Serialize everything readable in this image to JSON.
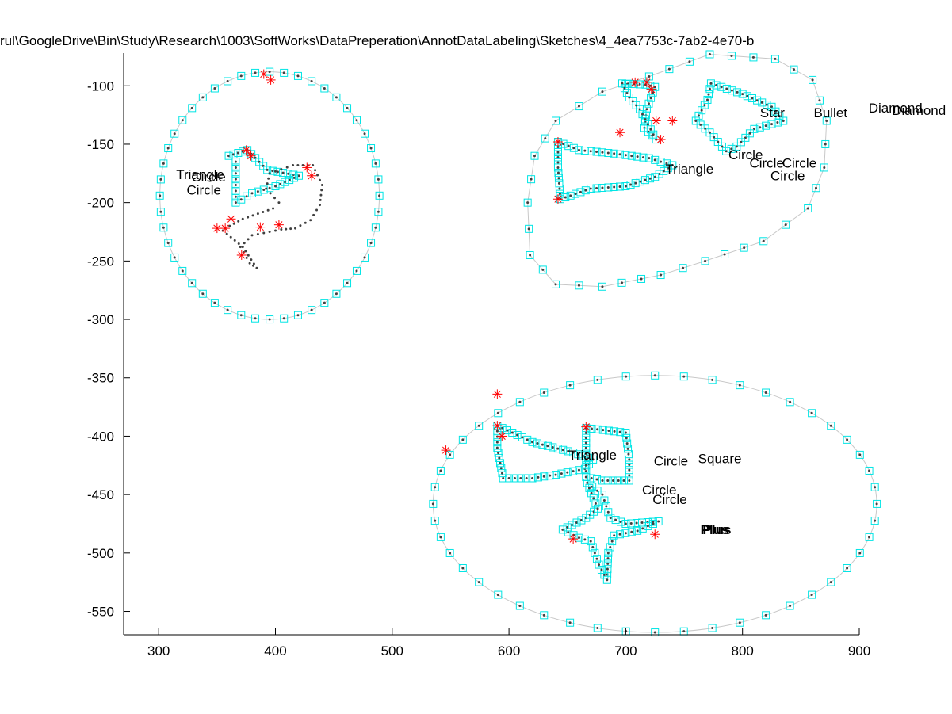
{
  "chart_data": {
    "type": "scatter",
    "title": "rul\\GoogleDrive\\Bin\\Study\\Research\\1003\\SoftWorks\\DataPreperation\\AnnotDataLabeling\\Sketches\\4_4ea7753c-7ab2-4e70-b",
    "xlabel": "",
    "ylabel": "",
    "xlim": [
      270,
      900
    ],
    "ylim": [
      -570,
      -72
    ],
    "xticks": [
      300,
      400,
      500,
      600,
      700,
      800,
      900
    ],
    "yticks": [
      -100,
      -150,
      -200,
      -250,
      -300,
      -350,
      -400,
      -450,
      -500,
      -550
    ],
    "xtick_labels": [
      "300",
      "400",
      "500",
      "600",
      "700",
      "800",
      "900"
    ],
    "ytick_labels": [
      "-100",
      "-150",
      "-200",
      "-250",
      "-300",
      "-350",
      "-400",
      "-450",
      "-500",
      "-550"
    ],
    "grid": false,
    "colors": {
      "marker_box": "#00e5e5",
      "point": "#404040",
      "star": "#ff0000",
      "hull": "#c8c8c8"
    },
    "boundaries": [
      {
        "name": "group-left",
        "shape": "ellipse",
        "cx": 395,
        "cy": -194,
        "rx": 94,
        "ry": 106
      },
      {
        "name": "group-bottom",
        "shape": "ellipse",
        "cx": 725,
        "cy": -458,
        "rx": 190,
        "ry": 110
      },
      {
        "name": "group-top-right",
        "shape": "polyline",
        "points": [
          [
            772,
            -73
          ],
          [
            828,
            -77
          ],
          [
            860,
            -95
          ],
          [
            872,
            -130
          ],
          [
            870,
            -170
          ],
          [
            856,
            -205
          ],
          [
            818,
            -233
          ],
          [
            768,
            -250
          ],
          [
            730,
            -262
          ],
          [
            680,
            -272
          ],
          [
            640,
            -270
          ],
          [
            618,
            -245
          ],
          [
            616,
            -200
          ],
          [
            622,
            -160
          ],
          [
            640,
            -130
          ],
          [
            680,
            -105
          ],
          [
            720,
            -92
          ],
          [
            772,
            -73
          ]
        ]
      }
    ],
    "strokes": [
      {
        "name": "left-triangle",
        "points": [
          [
            360,
            -160
          ],
          [
            376,
            -155
          ],
          [
            393,
            -172
          ],
          [
            420,
            -177
          ],
          [
            400,
            -186
          ],
          [
            380,
            -192
          ],
          [
            366,
            -200
          ],
          [
            366,
            -180
          ],
          [
            366,
            -160
          ]
        ]
      },
      {
        "name": "left-heart",
        "points": [
          [
            357,
            -222
          ],
          [
            372,
            -214
          ],
          [
            398,
            -205
          ],
          [
            403,
            -200
          ],
          [
            392,
            -188
          ],
          [
            395,
            -175
          ],
          [
            415,
            -168
          ],
          [
            432,
            -168
          ],
          [
            440,
            -185
          ],
          [
            438,
            -202
          ],
          [
            430,
            -215
          ],
          [
            417,
            -222
          ],
          [
            405,
            -223
          ],
          [
            380,
            -228
          ],
          [
            370,
            -238
          ],
          [
            378,
            -252
          ],
          [
            384,
            -256
          ],
          [
            372,
            -238
          ],
          [
            355,
            -224
          ],
          [
            350,
            -222
          ]
        ]
      },
      {
        "name": "bottom-triangle",
        "points": [
          [
            590,
            -391
          ],
          [
            620,
            -405
          ],
          [
            655,
            -414
          ],
          [
            672,
            -420
          ],
          [
            665,
            -428
          ],
          [
            640,
            -433
          ],
          [
            620,
            -436
          ],
          [
            595,
            -436
          ],
          [
            590,
            -410
          ],
          [
            590,
            -391
          ]
        ]
      },
      {
        "name": "bottom-square",
        "points": [
          [
            666,
            -393
          ],
          [
            700,
            -397
          ],
          [
            703,
            -420
          ],
          [
            703,
            -438
          ],
          [
            680,
            -438
          ],
          [
            666,
            -435
          ],
          [
            666,
            -410
          ],
          [
            666,
            -393
          ]
        ]
      },
      {
        "name": "bottom-plus",
        "points": [
          [
            667,
            -440
          ],
          [
            680,
            -450
          ],
          [
            685,
            -465
          ],
          [
            687,
            -470
          ],
          [
            700,
            -475
          ],
          [
            728,
            -473
          ],
          [
            710,
            -481
          ],
          [
            690,
            -485
          ],
          [
            685,
            -500
          ],
          [
            684,
            -523
          ],
          [
            677,
            -510
          ],
          [
            670,
            -490
          ],
          [
            660,
            -487
          ],
          [
            646,
            -480
          ],
          [
            666,
            -470
          ],
          [
            676,
            -462
          ],
          [
            667,
            -440
          ]
        ]
      },
      {
        "name": "topright-triangle",
        "points": [
          [
            642,
            -148
          ],
          [
            660,
            -155
          ],
          [
            690,
            -158
          ],
          [
            720,
            -162
          ],
          [
            740,
            -168
          ],
          [
            725,
            -178
          ],
          [
            700,
            -186
          ],
          [
            670,
            -188
          ],
          [
            644,
            -197
          ],
          [
            642,
            -170
          ],
          [
            642,
            -148
          ]
        ]
      },
      {
        "name": "topright-star",
        "points": [
          [
            697,
            -98
          ],
          [
            717,
            -99
          ],
          [
            725,
            -101
          ],
          [
            718,
            -120
          ],
          [
            716,
            -136
          ],
          [
            726,
            -146
          ],
          [
            712,
            -120
          ],
          [
            703,
            -110
          ],
          [
            697,
            -98
          ]
        ]
      },
      {
        "name": "topright-diamond",
        "points": [
          [
            773,
            -98
          ],
          [
            800,
            -107
          ],
          [
            825,
            -118
          ],
          [
            835,
            -130
          ],
          [
            810,
            -137
          ],
          [
            795,
            -152
          ],
          [
            786,
            -156
          ],
          [
            772,
            -140
          ],
          [
            760,
            -130
          ],
          [
            770,
            -112
          ],
          [
            773,
            -98
          ]
        ]
      }
    ],
    "stars": [
      [
        379,
        -160
      ],
      [
        375,
        -155
      ],
      [
        390,
        -90
      ],
      [
        396,
        -95
      ],
      [
        427,
        -170
      ],
      [
        431,
        -177
      ],
      [
        350,
        -222
      ],
      [
        357,
        -222
      ],
      [
        362,
        -214
      ],
      [
        387,
        -221
      ],
      [
        403,
        -219
      ],
      [
        371,
        -245
      ],
      [
        590,
        -364
      ],
      [
        546,
        -412
      ],
      [
        590,
        -391
      ],
      [
        594,
        -400
      ],
      [
        666,
        -392
      ],
      [
        655,
        -488
      ],
      [
        725,
        -484
      ],
      [
        642,
        -197
      ],
      [
        642,
        -148
      ],
      [
        695,
        -140
      ],
      [
        708,
        -97
      ],
      [
        718,
        -97
      ],
      [
        722,
        -103
      ],
      [
        726,
        -130
      ],
      [
        730,
        -146
      ],
      [
        740,
        -130
      ]
    ],
    "annotations": [
      {
        "text": "Triangle",
        "x": 317,
        "y": -180
      },
      {
        "text": "Circle",
        "x": 330,
        "y": -182
      },
      {
        "text": "Circle",
        "x": 326,
        "y": -193
      },
      {
        "text": "Star",
        "x": 817,
        "y": -127
      },
      {
        "text": "Bullet",
        "x": 863,
        "y": -127
      },
      {
        "text": "Diamond",
        "x": 910,
        "y": -123
      },
      {
        "text": "Diamond",
        "x": 930,
        "y": -125
      },
      {
        "text": "Circle",
        "x": 790,
        "y": -163
      },
      {
        "text": "Circle",
        "x": 808,
        "y": -170
      },
      {
        "text": "Circle",
        "x": 836,
        "y": -170
      },
      {
        "text": "Circle",
        "x": 826,
        "y": -181
      },
      {
        "text": "Triangle",
        "x": 736,
        "y": -175
      },
      {
        "text": "Triangle",
        "x": 653,
        "y": -420
      },
      {
        "text": "Circle",
        "x": 726,
        "y": -425
      },
      {
        "text": "Square",
        "x": 764,
        "y": -423
      },
      {
        "text": "Circle",
        "x": 716,
        "y": -450
      },
      {
        "text": "Circle",
        "x": 725,
        "y": -458
      },
      {
        "text": "Plus",
        "x": 766,
        "y": -484,
        "bold": true
      },
      {
        "text": "Plus",
        "x": 768,
        "y": -484,
        "bold": true
      }
    ]
  }
}
